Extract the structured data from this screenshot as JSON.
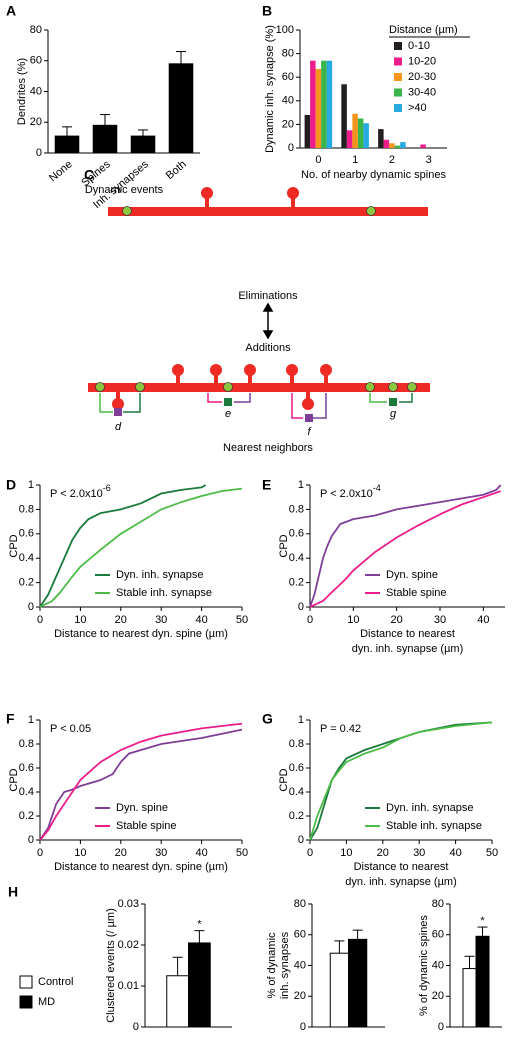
{
  "chart_data": [
    {
      "type": "bar",
      "panel": "A",
      "ylabel": "Dendrites (%)",
      "xlabel": "Dynamic events",
      "categories": [
        "None",
        "Spines",
        "Inh. synapses",
        "Both"
      ],
      "values": [
        11,
        18,
        11,
        58
      ],
      "errors": [
        6,
        7,
        4,
        8
      ],
      "color": "#000000",
      "ylim": [
        0,
        80
      ],
      "yticks": [
        0,
        20,
        40,
        60,
        80
      ]
    },
    {
      "type": "grouped-bar",
      "panel": "B",
      "ylabel": "Dynamic inh. synapse (%)",
      "xlabel": "No. of nearby dynamic spines",
      "legend_title": "Distance (µm)",
      "categories": [
        "0",
        "1",
        "2",
        "3"
      ],
      "series": [
        {
          "name": "0-10",
          "color": "#231f20",
          "values": [
            28,
            54,
            16,
            0
          ]
        },
        {
          "name": "10-20",
          "color": "#ec1c8c",
          "values": [
            74,
            15,
            7,
            3
          ]
        },
        {
          "name": "20-30",
          "color": "#f7941d",
          "values": [
            67,
            29,
            4,
            0
          ]
        },
        {
          "name": "30-40",
          "color": "#39b54a",
          "values": [
            74,
            25,
            2,
            0
          ]
        },
        {
          "name": ">40",
          "color": "#27aae1",
          "values": [
            74,
            21,
            5,
            0
          ]
        }
      ],
      "ylim": [
        0,
        100
      ],
      "yticks": [
        0,
        20,
        40,
        60,
        80,
        100
      ]
    },
    {
      "type": "line",
      "panel": "D",
      "annotation": {
        "text": "P < 2.0x10",
        "sup": "-6"
      },
      "ylabel": "CPD",
      "xlabel": [
        "Distance to nearest dyn. spine (µm)"
      ],
      "xlabel_color": "#7f3f98",
      "series": [
        {
          "name": "Dyn. inh. synapse",
          "color": "#1a7a3c",
          "x": [
            0,
            2,
            4,
            6,
            8,
            10,
            12,
            15,
            20,
            25,
            30,
            35,
            40,
            41
          ],
          "values": [
            0,
            0.1,
            0.25,
            0.4,
            0.55,
            0.65,
            0.72,
            0.77,
            0.8,
            0.85,
            0.93,
            0.96,
            0.98,
            1
          ]
        },
        {
          "name": "Stable inh. synapse",
          "color": "#4cbb47",
          "x": [
            0,
            3,
            5,
            8,
            10,
            15,
            20,
            25,
            30,
            35,
            40,
            45,
            50
          ],
          "values": [
            0,
            0.05,
            0.12,
            0.25,
            0.33,
            0.47,
            0.6,
            0.7,
            0.8,
            0.86,
            0.91,
            0.95,
            0.97
          ]
        }
      ],
      "xlim": [
        0,
        50
      ],
      "xticks": [
        0,
        10,
        20,
        30,
        40,
        50
      ],
      "ylim": [
        0,
        1
      ],
      "yticks": [
        0,
        0.2,
        0.4,
        0.6,
        0.8,
        1
      ]
    },
    {
      "type": "line",
      "panel": "E",
      "annotation": {
        "text": "P < 2.0x10",
        "sup": "-4"
      },
      "ylabel": "CPD",
      "xlabel": [
        "Distance to nearest",
        "dyn. inh. synapse (µm)"
      ],
      "xlabel_color": "#1a7a3c",
      "series": [
        {
          "name": "Dyn. spine",
          "color": "#7f3f98",
          "x": [
            0,
            1,
            2,
            3,
            4,
            5,
            7,
            10,
            15,
            20,
            30,
            40,
            43,
            44
          ],
          "values": [
            0,
            0.1,
            0.25,
            0.4,
            0.5,
            0.58,
            0.68,
            0.72,
            0.75,
            0.8,
            0.86,
            0.92,
            0.96,
            1
          ]
        },
        {
          "name": "Stable spine",
          "color": "#ec1c8c",
          "x": [
            0,
            3,
            5,
            8,
            10,
            15,
            20,
            25,
            30,
            35,
            40,
            44
          ],
          "values": [
            0,
            0.05,
            0.12,
            0.22,
            0.3,
            0.45,
            0.57,
            0.67,
            0.76,
            0.84,
            0.9,
            0.95
          ]
        }
      ],
      "xlim": [
        0,
        45
      ],
      "xticks": [
        0,
        10,
        20,
        30,
        40
      ],
      "ylim": [
        0,
        1
      ],
      "yticks": [
        0,
        0.2,
        0.4,
        0.6,
        0.8,
        1
      ]
    },
    {
      "type": "line",
      "panel": "F",
      "annotation": {
        "text": "P < 0.05"
      },
      "ylabel": "CPD",
      "xlabel": [
        "Distance to nearest dyn. spine (µm)"
      ],
      "xlabel_color": "#7f3f98",
      "series": [
        {
          "name": "Dyn. spine",
          "color": "#7f3f98",
          "x": [
            0,
            2,
            4,
            6,
            8,
            10,
            15,
            18,
            20,
            22,
            25,
            30,
            40,
            50
          ],
          "values": [
            0,
            0.1,
            0.3,
            0.4,
            0.42,
            0.45,
            0.5,
            0.55,
            0.65,
            0.72,
            0.75,
            0.8,
            0.85,
            0.92
          ]
        },
        {
          "name": "Stable spine",
          "color": "#ec1c8c",
          "x": [
            0,
            2,
            4,
            6,
            8,
            10,
            15,
            20,
            25,
            30,
            40,
            50
          ],
          "values": [
            0,
            0.08,
            0.2,
            0.3,
            0.4,
            0.5,
            0.65,
            0.75,
            0.82,
            0.87,
            0.93,
            0.97
          ]
        }
      ],
      "xlim": [
        0,
        50
      ],
      "xticks": [
        0,
        10,
        20,
        30,
        40,
        50
      ],
      "ylim": [
        0,
        1
      ],
      "yticks": [
        0,
        0.2,
        0.4,
        0.6,
        0.8,
        1
      ]
    },
    {
      "type": "line",
      "panel": "G",
      "annotation": {
        "text": "P = 0.42"
      },
      "ylabel": "CPD",
      "xlabel": [
        "Distance to nearest",
        "dyn. inh. synapse (µm)"
      ],
      "xlabel_color": "#1a7a3c",
      "series": [
        {
          "name": "Dyn. inh. synapse",
          "color": "#1a7a3c",
          "x": [
            0,
            2,
            4,
            6,
            8,
            10,
            15,
            20,
            25,
            30,
            40,
            50
          ],
          "values": [
            0,
            0.1,
            0.3,
            0.5,
            0.6,
            0.68,
            0.75,
            0.8,
            0.85,
            0.9,
            0.96,
            0.98
          ]
        },
        {
          "name": "Stable inh. synapse",
          "color": "#4cbb47",
          "x": [
            0,
            2,
            4,
            6,
            8,
            10,
            15,
            20,
            25,
            30,
            40,
            50
          ],
          "values": [
            0,
            0.2,
            0.35,
            0.5,
            0.58,
            0.65,
            0.72,
            0.77,
            0.85,
            0.9,
            0.95,
            0.98
          ]
        }
      ],
      "xlim": [
        0,
        50
      ],
      "xticks": [
        0,
        10,
        20,
        30,
        40,
        50
      ],
      "ylim": [
        0,
        1
      ],
      "yticks": [
        0,
        0.2,
        0.4,
        0.6,
        0.8,
        1
      ]
    },
    {
      "type": "bar",
      "panel": "H",
      "ylabel": [
        "Clustered events (/ µm)"
      ],
      "annotation": "*",
      "legend": [
        {
          "name": "Control",
          "color": "#ffffff"
        },
        {
          "name": "MD",
          "color": "#000000"
        }
      ],
      "values": [
        0.0125,
        0.0205
      ],
      "errors": [
        0.0045,
        0.003
      ],
      "colors": [
        "#ffffff",
        "#000000"
      ],
      "ylim": [
        0,
        0.03
      ],
      "yticks": [
        0,
        0.01,
        0.02,
        0.03
      ]
    },
    {
      "type": "bar",
      "ylabel": [
        "% of dynamic",
        "inh. synapses"
      ],
      "values": [
        48,
        57
      ],
      "errors": [
        8,
        6
      ],
      "colors": [
        "#ffffff",
        "#000000"
      ],
      "ylim": [
        0,
        80
      ],
      "yticks": [
        0,
        20,
        40,
        60,
        80
      ]
    },
    {
      "type": "bar",
      "ylabel": [
        "% of dynamic spines"
      ],
      "annotation": "*",
      "values": [
        38,
        59
      ],
      "errors": [
        8,
        6
      ],
      "colors": [
        "#ffffff",
        "#000000"
      ],
      "ylim": [
        0,
        80
      ],
      "yticks": [
        0,
        20,
        40,
        60,
        80
      ]
    }
  ],
  "diagram": {
    "panel": "C",
    "top_label": "Eliminations",
    "bottom_label": "Additions",
    "caption": "Nearest neighbors",
    "markers": [
      "d",
      "e",
      "f",
      "g"
    ]
  }
}
